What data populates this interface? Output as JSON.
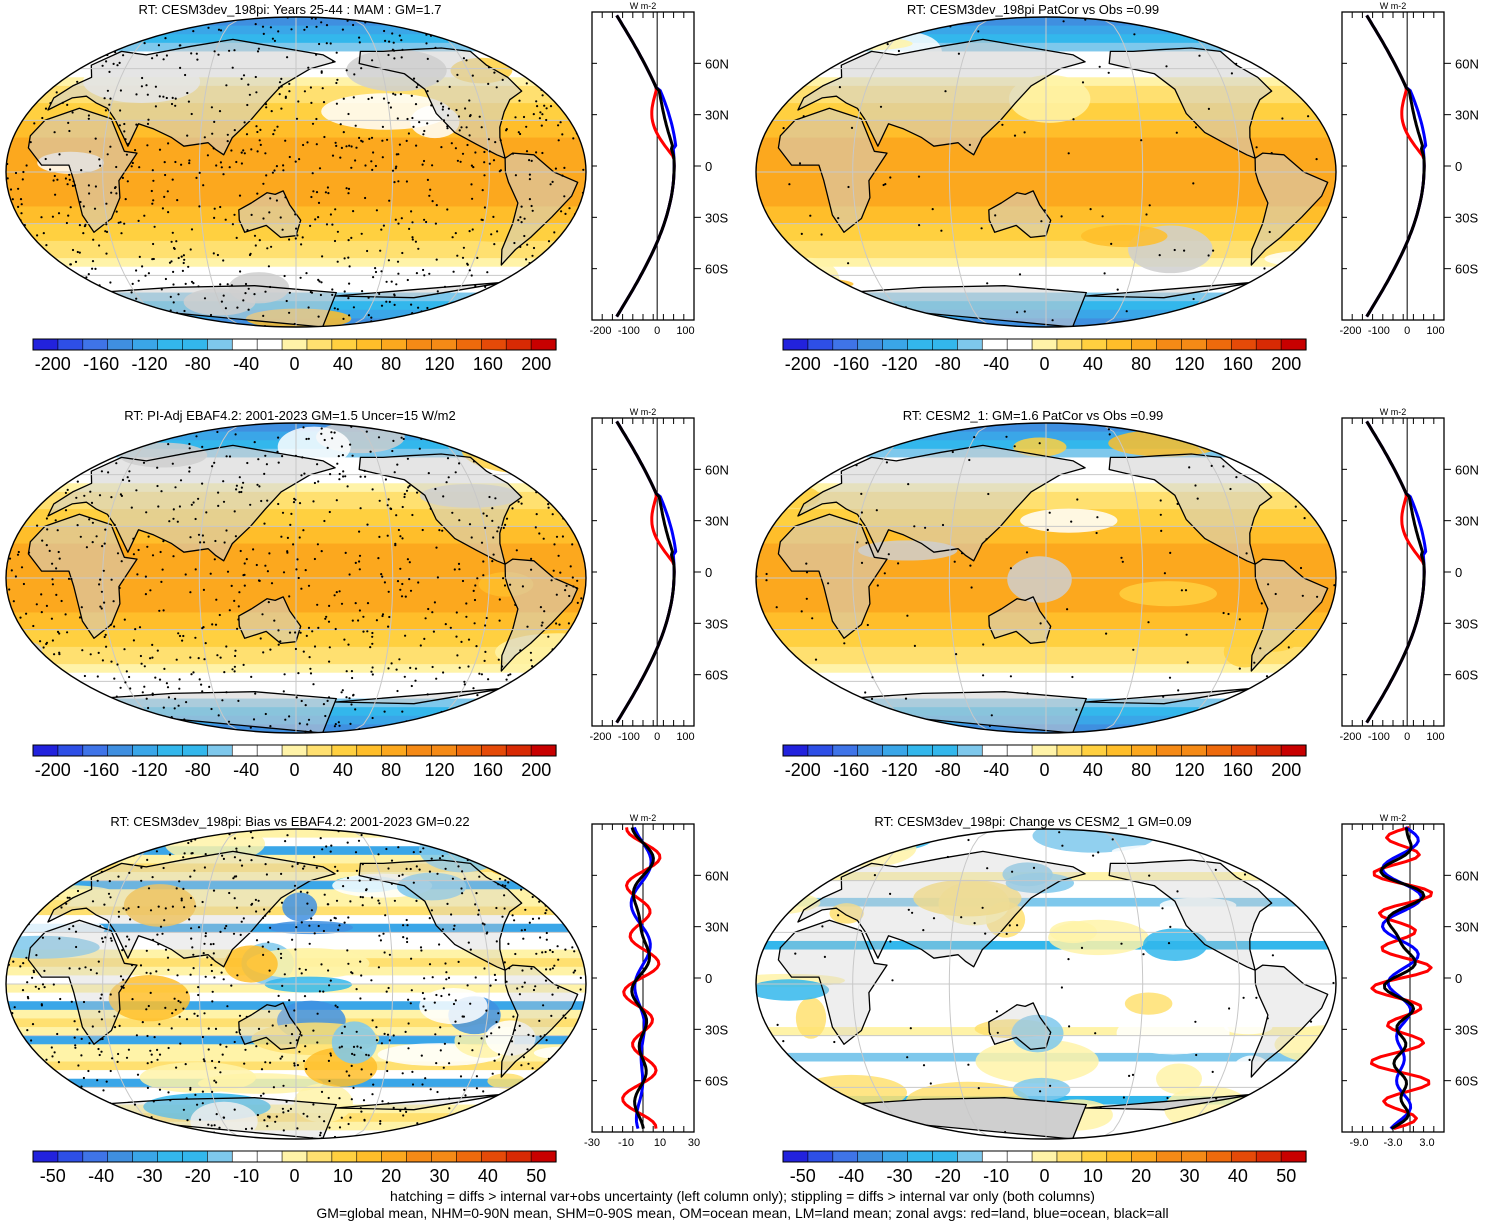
{
  "colors": {
    "sequential": [
      "#2222dd",
      "#2e4fe6",
      "#3f74e8",
      "#3f8fe0",
      "#3aa6e8",
      "#33b7ec",
      "#7ec8ec",
      "#ffffff",
      "#ffffff",
      "#fff3a8",
      "#ffe070",
      "#ffd040",
      "#ffbe2a",
      "#fca81e",
      "#f58a16",
      "#ee6a0c",
      "#e54a08",
      "#d82a04",
      "#c80000"
    ],
    "land_gray": "#cfcfcf",
    "zonal_land": "#ff0000",
    "zonal_ocean": "#0000ff",
    "zonal_all": "#000000"
  },
  "panels": [
    {
      "title": "RT: CESM3dev_198pi: Years 25-44 : MAM : GM=1.7",
      "kind": "mean",
      "stipple_density": 0.45,
      "colorbar": {
        "labels": [
          "-200",
          "-160",
          "-120",
          "-80",
          "-40",
          "0",
          "40",
          "80",
          "120",
          "160",
          "200"
        ]
      },
      "zonal": {
        "unit": "W m-2",
        "xticks": [
          "-200",
          "-100",
          "0",
          "100"
        ],
        "xlim": [
          -230,
          130
        ],
        "lat_ticks": [
          "60N",
          "30N",
          "0",
          "30S",
          "60S"
        ]
      }
    },
    {
      "title": "RT: CESM3dev_198pi PatCor vs Obs =0.99",
      "kind": "mean",
      "stipple_density": 0.05,
      "colorbar": {
        "labels": [
          "-200",
          "-160",
          "-120",
          "-80",
          "-40",
          "0",
          "40",
          "80",
          "120",
          "160",
          "200"
        ]
      },
      "zonal": {
        "unit": "W m-2",
        "xticks": [
          "-200",
          "-100",
          "0",
          "100"
        ],
        "xlim": [
          -230,
          130
        ],
        "lat_ticks": [
          "60N",
          "30N",
          "0",
          "30S",
          "60S"
        ]
      }
    },
    {
      "title": "RT: PI-Adj EBAF4.2: 2001-2023 GM=1.5 Uncer=15 W/m2",
      "kind": "mean",
      "stipple_density": 0.4,
      "colorbar": {
        "labels": [
          "-200",
          "-160",
          "-120",
          "-80",
          "-40",
          "0",
          "40",
          "80",
          "120",
          "160",
          "200"
        ]
      },
      "zonal": {
        "unit": "W m-2",
        "xticks": [
          "-200",
          "-100",
          "0",
          "100"
        ],
        "xlim": [
          -230,
          130
        ],
        "lat_ticks": [
          "60N",
          "30N",
          "0",
          "30S",
          "60S"
        ]
      }
    },
    {
      "title": "RT: CESM2_1: GM=1.6 PatCor vs Obs =0.99",
      "kind": "mean",
      "stipple_density": 0.06,
      "colorbar": {
        "labels": [
          "-200",
          "-160",
          "-120",
          "-80",
          "-40",
          "0",
          "40",
          "80",
          "120",
          "160",
          "200"
        ]
      },
      "zonal": {
        "unit": "W m-2",
        "xticks": [
          "-200",
          "-100",
          "0",
          "100"
        ],
        "xlim": [
          -230,
          130
        ],
        "lat_ticks": [
          "60N",
          "30N",
          "0",
          "30S",
          "60S"
        ]
      }
    },
    {
      "title": "RT: CESM3dev_198pi: Bias vs EBAF4.2: 2001-2023 GM=0.22",
      "kind": "bias",
      "stipple_density": 0.45,
      "colorbar": {
        "labels": [
          "-50",
          "-40",
          "-30",
          "-20",
          "-10",
          "0",
          "10",
          "20",
          "30",
          "40",
          "50"
        ]
      },
      "zonal": {
        "unit": "W m-2",
        "xticks": [
          "-30",
          "-10",
          "10",
          "30"
        ],
        "xlim": [
          -30,
          30
        ],
        "lat_ticks": [
          "60N",
          "30N",
          "0",
          "30S",
          "60S"
        ]
      }
    },
    {
      "title": "RT: CESM3dev_198pi: Change vs CESM2_1 GM=0.09",
      "kind": "change",
      "stipple_density": 0.04,
      "colorbar": {
        "labels": [
          "-50",
          "-40",
          "-30",
          "-20",
          "-10",
          "0",
          "10",
          "20",
          "30",
          "40",
          "50"
        ]
      },
      "zonal": {
        "unit": "W m-2",
        "xticks": [
          "-9.0",
          "-3.0",
          "3.0"
        ],
        "xlim": [
          -12,
          6
        ],
        "lat_ticks": [
          "60N",
          "30N",
          "0",
          "30S",
          "60S"
        ]
      }
    }
  ],
  "footer": {
    "line1": "hatching = diffs > internal var+obs uncertainty (left column only); stippling = diffs > internal var only (both columns)",
    "line2": "GM=global mean, NHM=0-90N mean, SHM=0-90S mean, OM=ocean mean, LM=land mean; zonal avgs: red=land, blue=ocean, black=all"
  }
}
